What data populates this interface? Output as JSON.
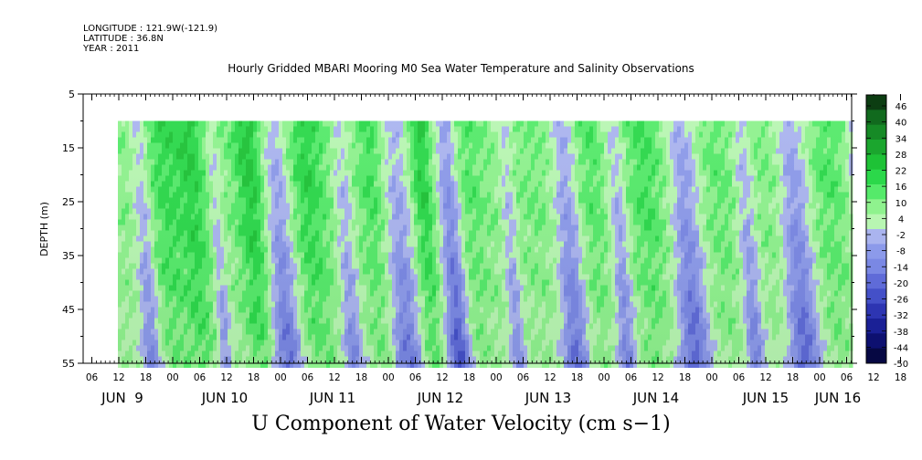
{
  "header": {
    "longitude": "LONGITUDE : 121.9W(-121.9)",
    "latitude": "LATITUDE : 36.8N",
    "year": "YEAR : 2011"
  },
  "chart_data": {
    "type": "heatmap",
    "title": "Hourly Gridded MBARI Mooring M0 Sea Water Temperature and Salinity Observations",
    "xlabel": "U Component of Water Velocity (cm s−1)",
    "ylabel": "DEPTH (m)",
    "ylim": [
      5,
      55
    ],
    "y_inverted": true,
    "y_ticks": [
      "5",
      "15",
      "25",
      "35",
      "45",
      "55"
    ],
    "x_hour_ticks": [
      "06",
      "12",
      "18",
      "00",
      "06",
      "12",
      "18",
      "00",
      "06",
      "12",
      "18",
      "00",
      "06",
      "12",
      "18",
      "00",
      "06",
      "12",
      "18",
      "00",
      "06",
      "12",
      "18",
      "00",
      "06",
      "12",
      "18",
      "00",
      "06",
      "12",
      "18",
      "00"
    ],
    "x_day_labels": [
      "JUN  9",
      "JUN 10",
      "JUN 11",
      "JUN 12",
      "JUN 13",
      "JUN 14",
      "JUN 15",
      "JUN 16"
    ],
    "data_depth_range": [
      10,
      55
    ],
    "colorbar": {
      "labels": [
        "46",
        "40",
        "34",
        "28",
        "22",
        "16",
        "10",
        "4",
        "-2",
        "-8",
        "-14",
        "-20",
        "-26",
        "-32",
        "-38",
        "-44",
        "-50"
      ],
      "colors": [
        "#0c3d12",
        "#116a1e",
        "#168a26",
        "#1ba62e",
        "#1ec236",
        "#2bd84a",
        "#55ea6a",
        "#8ff28e",
        "#b8f6b2",
        "#aab4ef",
        "#8c9aea",
        "#7a88e4",
        "#5f6bd8",
        "#4450c8",
        "#2d35b2",
        "#1a2096",
        "#0d1070",
        "#060843"
      ]
    },
    "notes": "Color field: green = positive (eastward) velocity, blue = negative; alternating vertical bands over Jun 9 12:00 to Jun 16 06:00"
  }
}
